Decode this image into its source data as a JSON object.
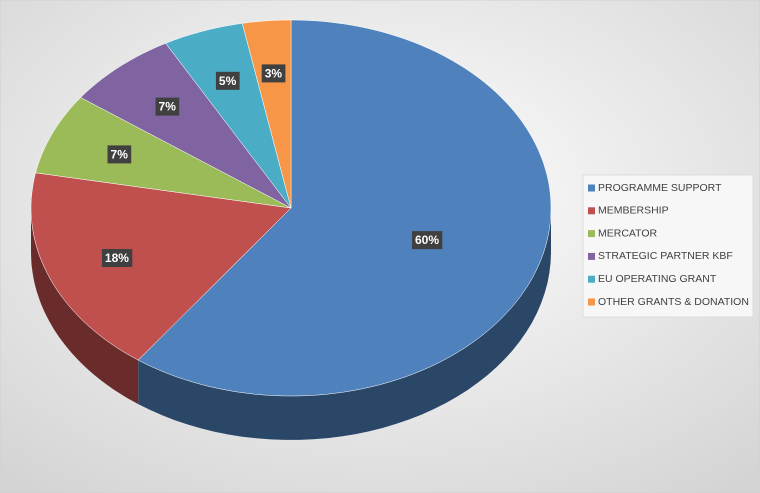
{
  "chart_data": {
    "type": "pie3d",
    "categories": [
      "PROGRAMME SUPPORT",
      "MEMBERSHIP",
      "MERCATOR",
      "STRATEGIC PARTNER KBF",
      "EU OPERATING GRANT",
      "OTHER GRANTS & DONATION"
    ],
    "values": [
      60,
      18,
      7,
      7,
      5,
      3
    ],
    "value_labels": [
      "60%",
      "18%",
      "7%",
      "7%",
      "5%",
      "3%"
    ],
    "colors": [
      "#4f81bd",
      "#c0504d",
      "#9bbb59",
      "#8064a2",
      "#4bacc6",
      "#f79646"
    ],
    "legend": "right"
  }
}
